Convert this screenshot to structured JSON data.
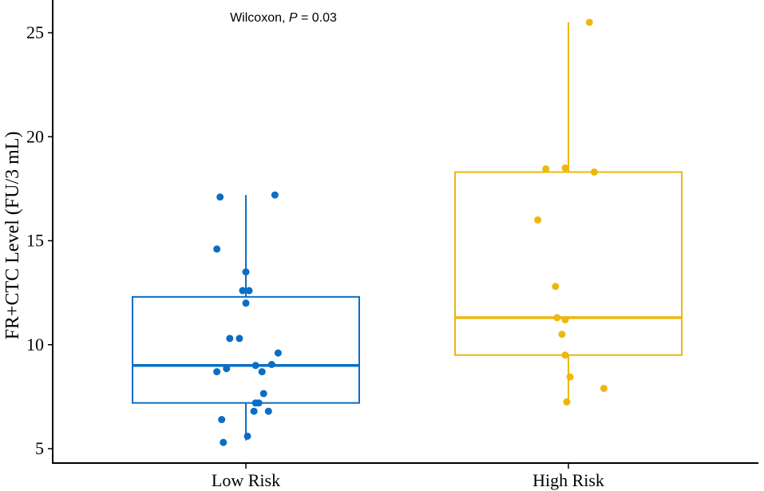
{
  "chart_data": {
    "type": "boxplot",
    "title": "",
    "xlabel": "",
    "ylabel": "FR+CTC Level (FU/3 mL)",
    "ylim": [
      4.2,
      26.5
    ],
    "yticks": [
      5,
      10,
      15,
      20,
      25
    ],
    "ytick_labels": [
      "5",
      "10",
      "15",
      "20",
      "25"
    ],
    "grid": false,
    "annotation": {
      "prefix": "Wilcoxon, ",
      "stat_symbol": "P",
      "stat_value": " = 0.03"
    },
    "categories": [
      "Low Risk",
      "High Risk"
    ],
    "series": [
      {
        "name": "Low Risk",
        "color": "#0A6EC4",
        "box": {
          "whisker_low": 5.4,
          "q1": 7.2,
          "median": 9.0,
          "q3": 12.3,
          "whisker_high": 17.2
        },
        "points": [
          {
            "offset": -0.08,
            "value": 17.1
          },
          {
            "offset": 0.09,
            "value": 17.2
          },
          {
            "offset": -0.09,
            "value": 14.6
          },
          {
            "offset": 0.0,
            "value": 13.5
          },
          {
            "offset": -0.01,
            "value": 12.6
          },
          {
            "offset": 0.01,
            "value": 12.6
          },
          {
            "offset": 0.0,
            "value": 12.0
          },
          {
            "offset": -0.05,
            "value": 10.3
          },
          {
            "offset": -0.02,
            "value": 10.3
          },
          {
            "offset": 0.1,
            "value": 9.6
          },
          {
            "offset": 0.08,
            "value": 9.05
          },
          {
            "offset": 0.03,
            "value": 9.0
          },
          {
            "offset": -0.06,
            "value": 8.85
          },
          {
            "offset": -0.09,
            "value": 8.7
          },
          {
            "offset": 0.05,
            "value": 8.7
          },
          {
            "offset": 0.055,
            "value": 7.65
          },
          {
            "offset": 0.03,
            "value": 7.2
          },
          {
            "offset": 0.04,
            "value": 7.2
          },
          {
            "offset": 0.025,
            "value": 6.8
          },
          {
            "offset": 0.07,
            "value": 6.8
          },
          {
            "offset": -0.075,
            "value": 6.4
          },
          {
            "offset": 0.005,
            "value": 5.6
          },
          {
            "offset": -0.07,
            "value": 5.3
          }
        ]
      },
      {
        "name": "High Risk",
        "color": "#EDB70C",
        "box": {
          "whisker_low": 7.3,
          "q1": 9.5,
          "median": 11.3,
          "q3": 18.3,
          "whisker_high": 25.5
        },
        "points": [
          {
            "offset": 0.065,
            "value": 25.5
          },
          {
            "offset": -0.07,
            "value": 18.45
          },
          {
            "offset": -0.01,
            "value": 18.5
          },
          {
            "offset": 0.08,
            "value": 18.3
          },
          {
            "offset": -0.095,
            "value": 16.0
          },
          {
            "offset": -0.04,
            "value": 12.8
          },
          {
            "offset": -0.035,
            "value": 11.3
          },
          {
            "offset": -0.01,
            "value": 11.2
          },
          {
            "offset": -0.02,
            "value": 10.5
          },
          {
            "offset": -0.01,
            "value": 9.5
          },
          {
            "offset": 0.005,
            "value": 8.45
          },
          {
            "offset": 0.11,
            "value": 7.9
          },
          {
            "offset": -0.005,
            "value": 7.25
          }
        ]
      }
    ]
  }
}
